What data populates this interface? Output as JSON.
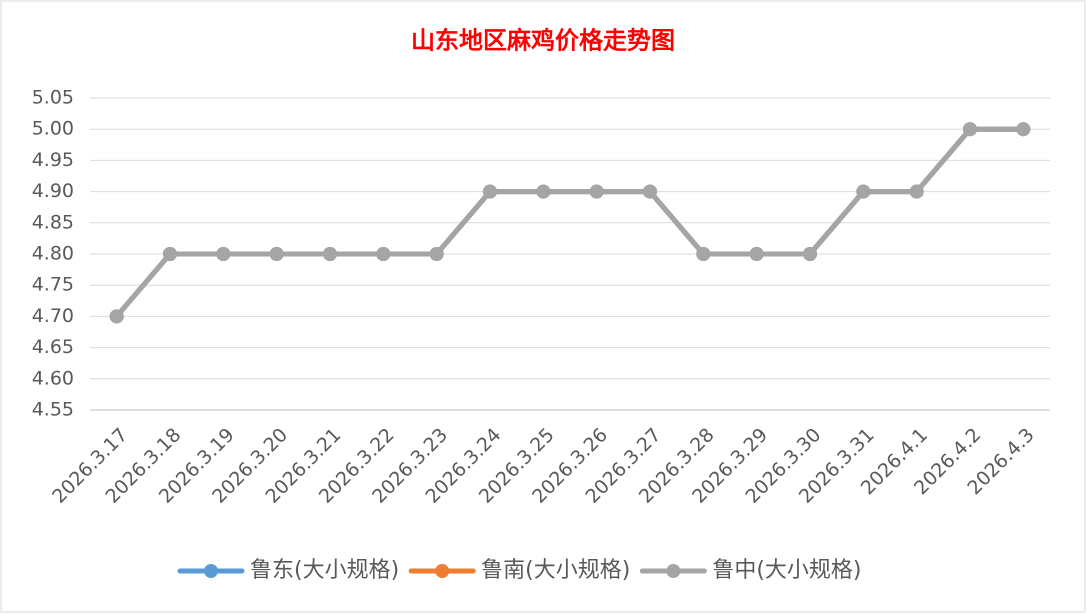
{
  "chart_data": {
    "type": "line",
    "title": "山东地区麻鸡价格走势图",
    "categories": [
      "2026.3.17",
      "2026.3.18",
      "2026.3.19",
      "2026.3.20",
      "2026.3.21",
      "2026.3.22",
      "2026.3.23",
      "2026.3.24",
      "2026.3.25",
      "2026.3.26",
      "2026.3.27",
      "2026.3.28",
      "2026.3.29",
      "2026.3.30",
      "2026.3.31",
      "2026.4.1",
      "2026.4.2",
      "2026.4.3"
    ],
    "series": [
      {
        "name": "鲁东(大小规格)",
        "color": "#5b9bd5",
        "values": [
          4.7,
          4.8,
          4.8,
          4.8,
          4.8,
          4.8,
          4.8,
          4.9,
          4.9,
          4.9,
          4.9,
          4.8,
          4.8,
          4.8,
          4.9,
          4.9,
          5,
          5
        ]
      },
      {
        "name": "鲁南(大小规格)",
        "color": "#ed7d31",
        "values": [
          4.7,
          4.8,
          4.8,
          4.8,
          4.8,
          4.8,
          4.8,
          4.9,
          4.9,
          4.9,
          4.9,
          4.8,
          4.8,
          4.8,
          4.9,
          4.9,
          5,
          5
        ]
      },
      {
        "name": "鲁中(大小规格)",
        "color": "#a5a5a5",
        "values": [
          4.7,
          4.8,
          4.8,
          4.8,
          4.8,
          4.8,
          4.8,
          4.9,
          4.9,
          4.9,
          4.9,
          4.8,
          4.8,
          4.8,
          4.9,
          4.9,
          5,
          5
        ]
      }
    ],
    "ylim": [
      4.55,
      5.05
    ],
    "yticks": [
      4.55,
      {
        "value": 4.6,
        "label": "4.60"
      },
      4.65,
      {
        "value": 4.7,
        "label": "4.70"
      },
      4.75,
      {
        "value": 4.8,
        "label": "4.80"
      },
      4.85,
      {
        "value": 4.9,
        "label": "4.90"
      },
      4.95,
      {
        "value": 5,
        "label": "5.00"
      },
      5.05
    ],
    "grid": true,
    "legend": "bottom"
  }
}
